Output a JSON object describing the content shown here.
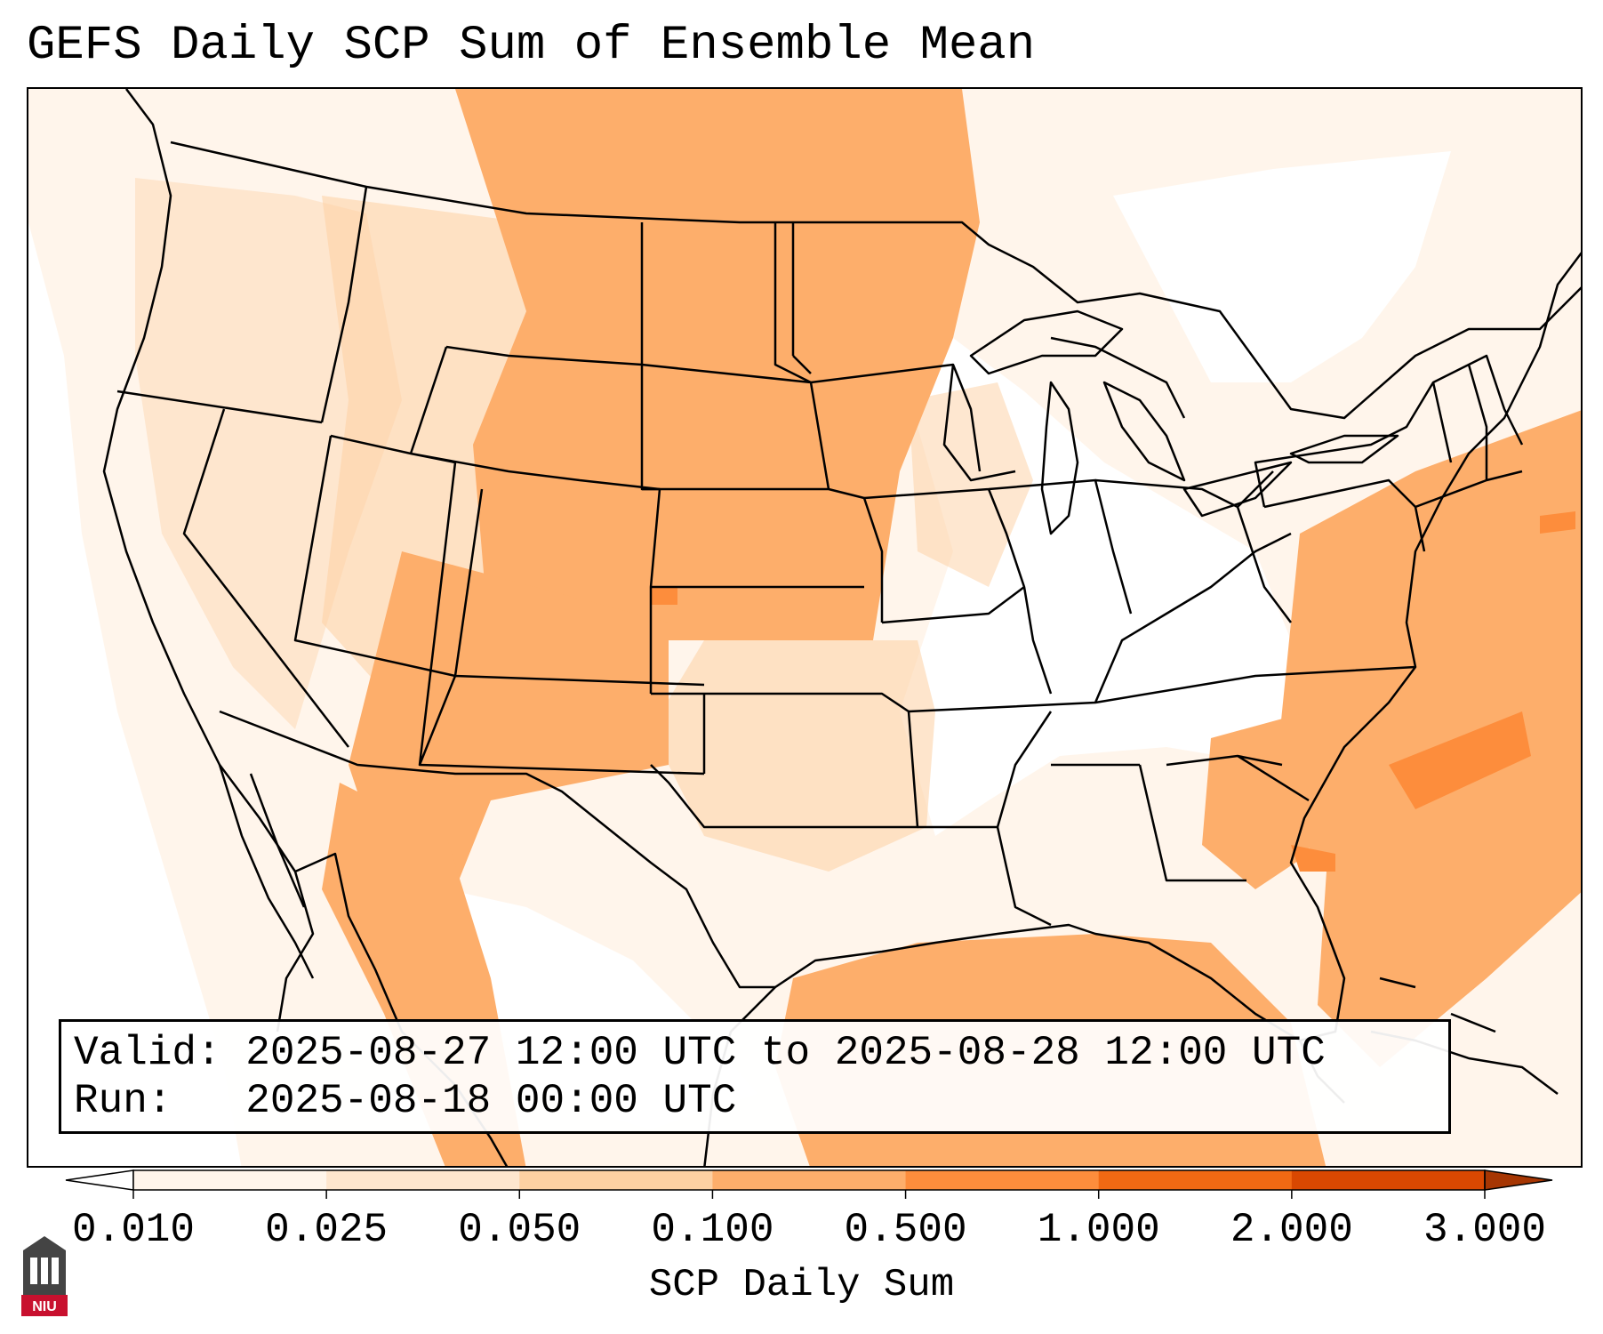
{
  "title": "GEFS Daily SCP Sum of Ensemble Mean",
  "info": {
    "valid_line": "Valid: 2025-08-27 12:00 UTC to 2025-08-28 12:00 UTC",
    "run_line": "Run:   2025-08-18 00:00 UTC"
  },
  "colorbar": {
    "label": "SCP Daily Sum",
    "ticks": [
      "0.010",
      "0.025",
      "0.050",
      "0.100",
      "0.500",
      "1.000",
      "2.000",
      "3.000"
    ],
    "colors": [
      "#fff5eb",
      "#fee6ce",
      "#fdd0a2",
      "#fdae6b",
      "#fd8d3c",
      "#f16913",
      "#d94801"
    ],
    "under_color": "#ffffff",
    "over_color": "#a63603"
  },
  "map": {
    "region": "CONUS",
    "background_color": "#ffffff",
    "border_color": "#000000"
  },
  "logo": {
    "text": "NIU",
    "color": "#c8102e"
  }
}
